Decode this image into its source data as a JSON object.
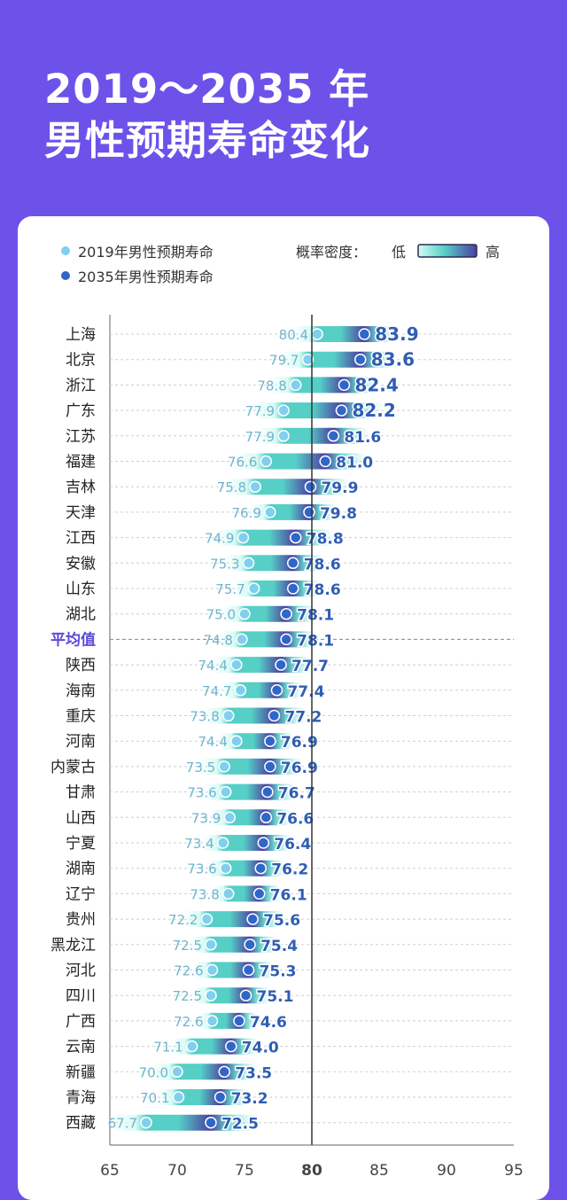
{
  "header": {
    "title_line1": "2019～2035 年",
    "title_line2": "男性预期寿命变化"
  },
  "legend": {
    "item_2019": "2019年男性预期寿命",
    "item_2035": "2035年男性预期寿命",
    "density_label": "概率密度：",
    "density_low": "低",
    "density_high": "高"
  },
  "colors": {
    "background": "#6d52ea",
    "dot_2019": "#7fd0ef",
    "dot_2035": "#2f66c9",
    "label_2019": "#6fb4cf",
    "label_2035": "#2f5eb3",
    "highlight": "#5b4bd8",
    "density_low": "#d6fbf4",
    "density_mid": "#56cfc6",
    "density_high": "#4a3fa0"
  },
  "chart_data": {
    "type": "dumbbell",
    "xlim": [
      65,
      95
    ],
    "xticks": [
      "65",
      "70",
      "75",
      "80",
      "85",
      "90",
      "95"
    ],
    "reference_line": 80,
    "series": [
      {
        "name": "2019年男性预期寿命",
        "key": "v2019"
      },
      {
        "name": "2035年男性预期寿命",
        "key": "v2035"
      }
    ],
    "rows": [
      {
        "region": "上海",
        "v2019": "80.4",
        "v2035": "83.9"
      },
      {
        "region": "北京",
        "v2019": "79.7",
        "v2035": "83.6"
      },
      {
        "region": "浙江",
        "v2019": "78.8",
        "v2035": "82.4"
      },
      {
        "region": "广东",
        "v2019": "77.9",
        "v2035": "82.2"
      },
      {
        "region": "江苏",
        "v2019": "77.9",
        "v2035": "81.6"
      },
      {
        "region": "福建",
        "v2019": "76.6",
        "v2035": "81.0"
      },
      {
        "region": "吉林",
        "v2019": "75.8",
        "v2035": "79.9"
      },
      {
        "region": "天津",
        "v2019": "76.9",
        "v2035": "79.8"
      },
      {
        "region": "江西",
        "v2019": "74.9",
        "v2035": "78.8"
      },
      {
        "region": "安徽",
        "v2019": "75.3",
        "v2035": "78.6"
      },
      {
        "region": "山东",
        "v2019": "75.7",
        "v2035": "78.6"
      },
      {
        "region": "湖北",
        "v2019": "75.0",
        "v2035": "78.1"
      },
      {
        "region": "平均值",
        "v2019": "74.8",
        "v2035": "78.1",
        "highlight": true
      },
      {
        "region": "陕西",
        "v2019": "74.4",
        "v2035": "77.7"
      },
      {
        "region": "海南",
        "v2019": "74.7",
        "v2035": "77.4"
      },
      {
        "region": "重庆",
        "v2019": "73.8",
        "v2035": "77.2"
      },
      {
        "region": "河南",
        "v2019": "74.4",
        "v2035": "76.9"
      },
      {
        "region": "内蒙古",
        "v2019": "73.5",
        "v2035": "76.9"
      },
      {
        "region": "甘肃",
        "v2019": "73.6",
        "v2035": "76.7"
      },
      {
        "region": "山西",
        "v2019": "73.9",
        "v2035": "76.6"
      },
      {
        "region": "宁夏",
        "v2019": "73.4",
        "v2035": "76.4"
      },
      {
        "region": "湖南",
        "v2019": "73.6",
        "v2035": "76.2"
      },
      {
        "region": "辽宁",
        "v2019": "73.8",
        "v2035": "76.1"
      },
      {
        "region": "贵州",
        "v2019": "72.2",
        "v2035": "75.6"
      },
      {
        "region": "黑龙江",
        "v2019": "72.5",
        "v2035": "75.4"
      },
      {
        "region": "河北",
        "v2019": "72.6",
        "v2035": "75.3"
      },
      {
        "region": "四川",
        "v2019": "72.5",
        "v2035": "75.1"
      },
      {
        "region": "广西",
        "v2019": "72.6",
        "v2035": "74.6"
      },
      {
        "region": "云南",
        "v2019": "71.1",
        "v2035": "74.0"
      },
      {
        "region": "新疆",
        "v2019": "70.0",
        "v2035": "73.5"
      },
      {
        "region": "青海",
        "v2019": "70.1",
        "v2035": "73.2"
      },
      {
        "region": "西藏",
        "v2019": "67.7",
        "v2035": "72.5"
      }
    ]
  }
}
